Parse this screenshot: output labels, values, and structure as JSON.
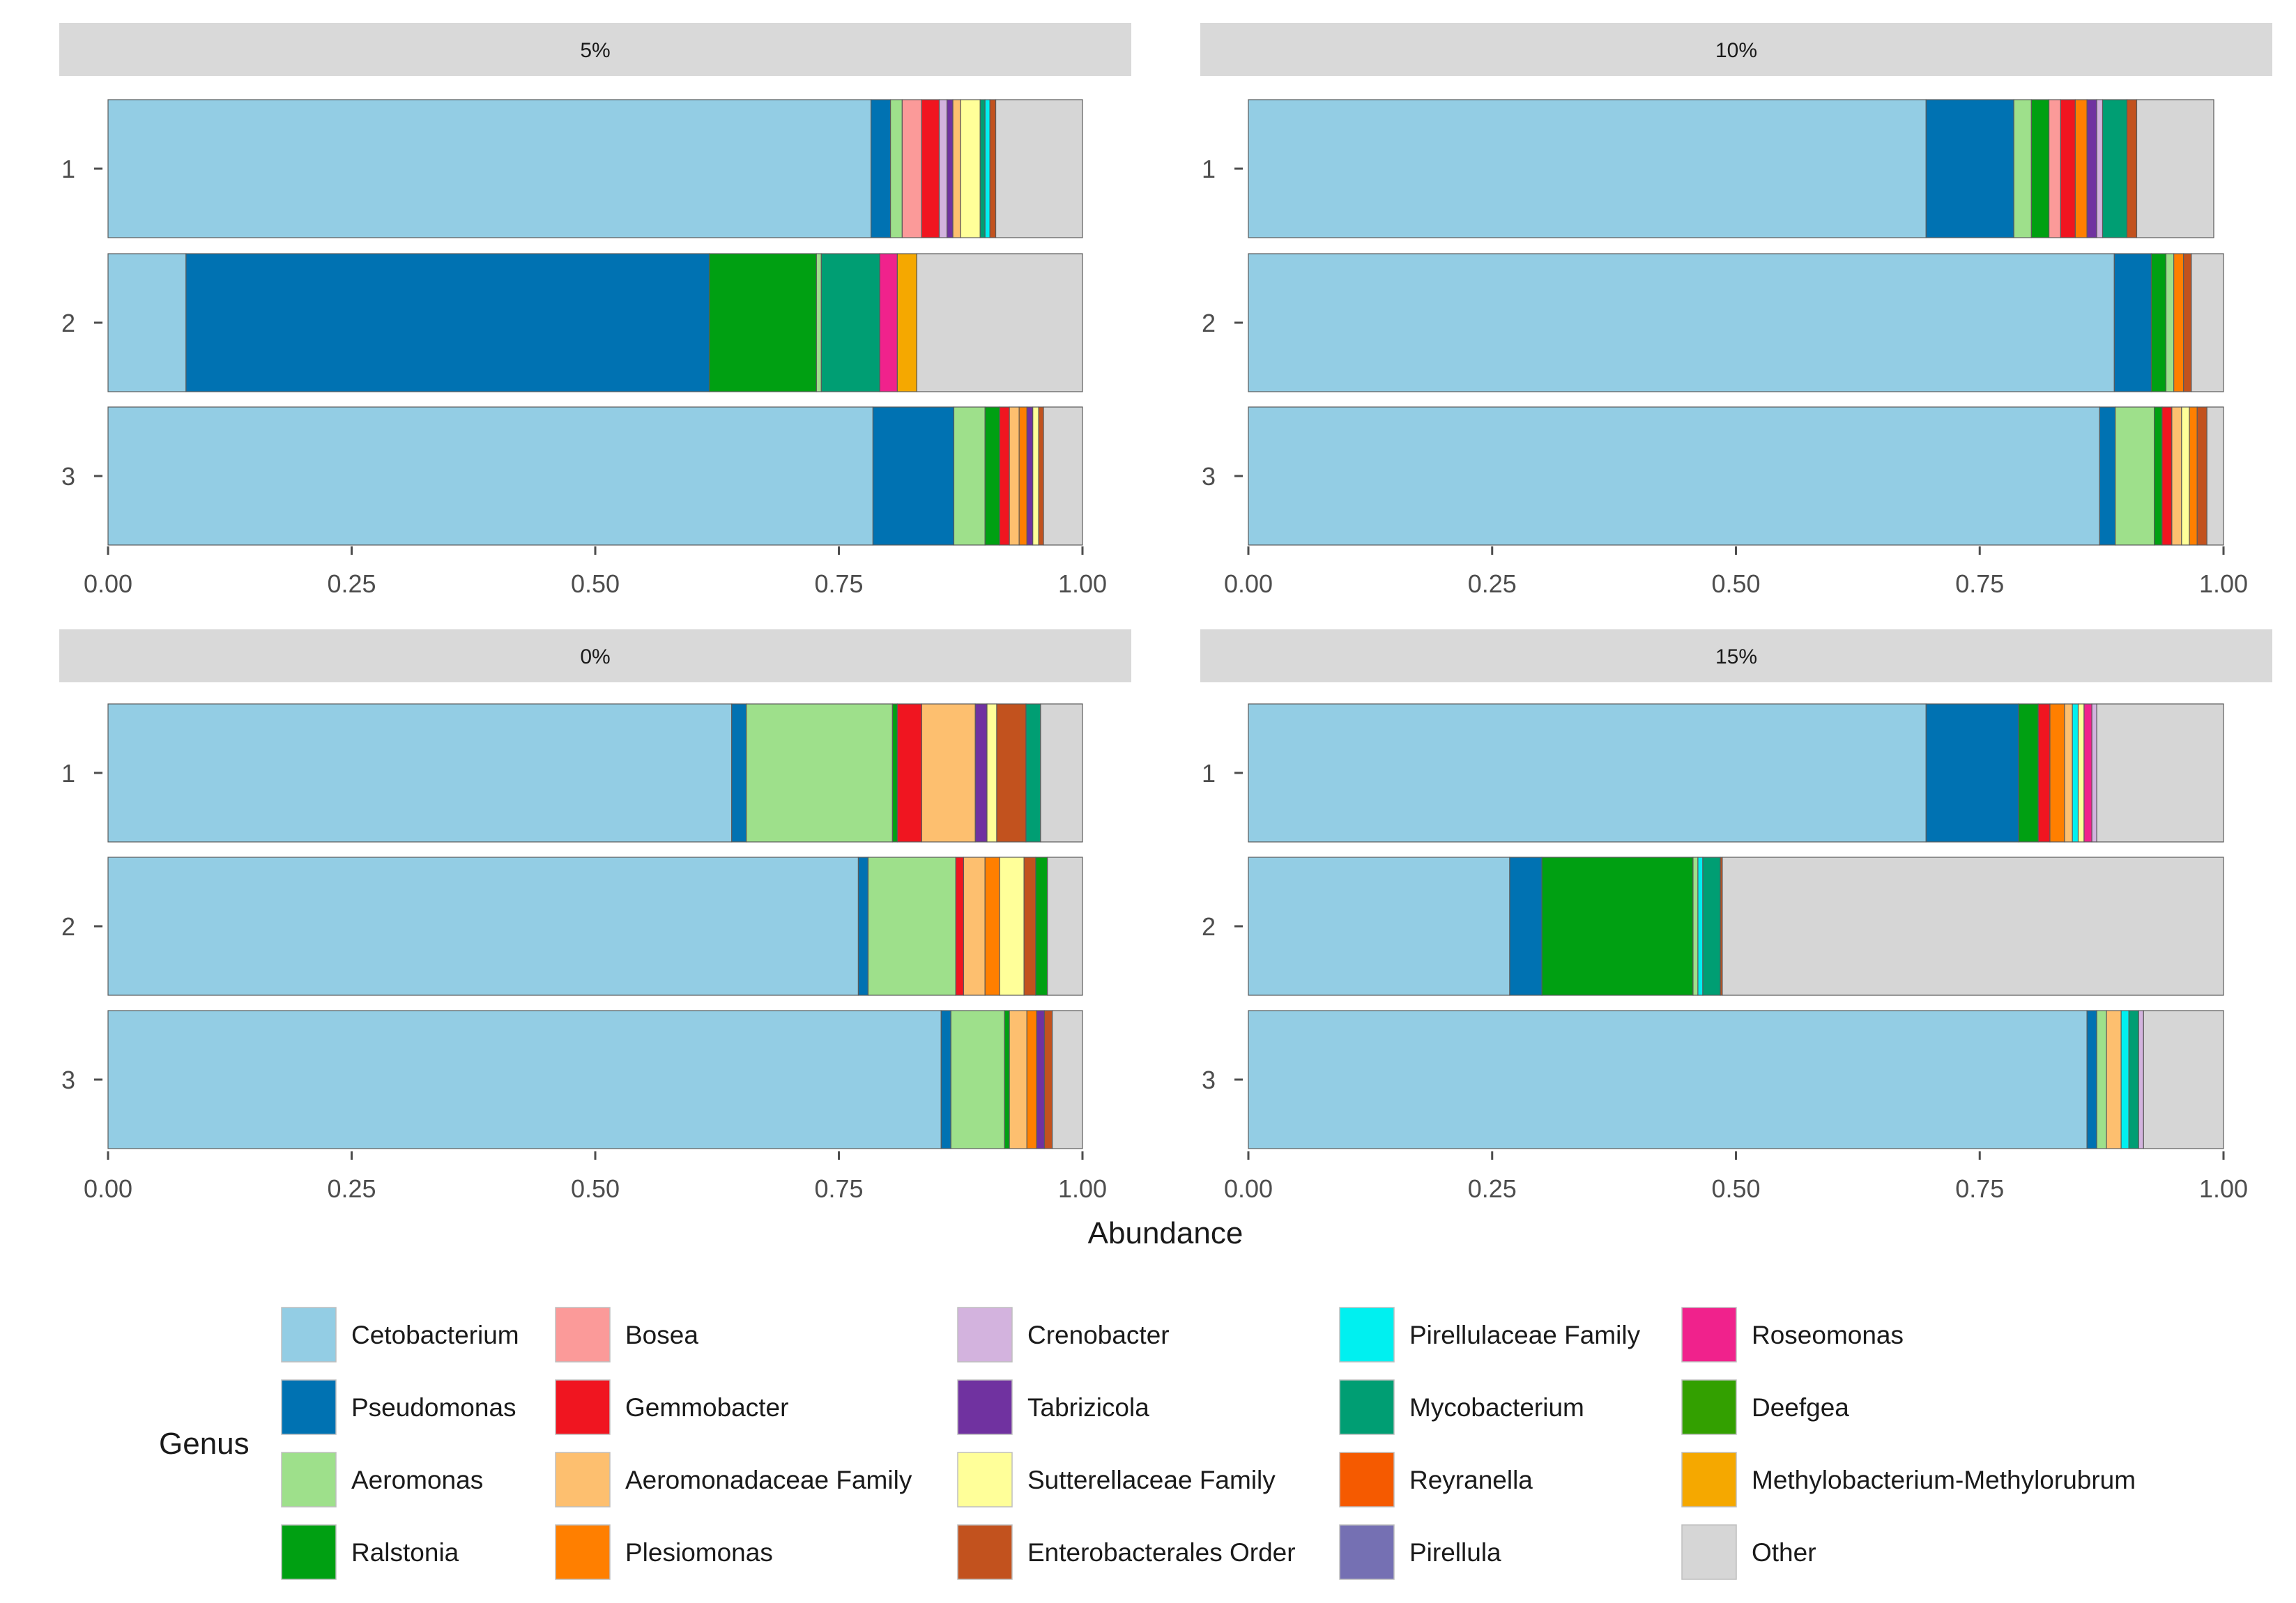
{
  "chart_data": {
    "type": "bar",
    "orientation": "horizontal",
    "stacked": true,
    "xlabel": "Abundance",
    "xlim": [
      0,
      1
    ],
    "x_ticks": [
      "0.00",
      "0.25",
      "0.50",
      "0.75",
      "1.00"
    ],
    "legend": {
      "title": "Genus",
      "position": "bottom",
      "entries": [
        {
          "name": "Cetobacterium",
          "color": "#93cde4"
        },
        {
          "name": "Pseudomonas",
          "color": "#0072b2"
        },
        {
          "name": "Aeromonas",
          "color": "#9ee08b"
        },
        {
          "name": "Ralstonia",
          "color": "#00a012"
        },
        {
          "name": "Bosea",
          "color": "#fb9a99"
        },
        {
          "name": "Gemmobacter",
          "color": "#f01520"
        },
        {
          "name": "Aeromonadaceae Family",
          "color": "#fdbf6f"
        },
        {
          "name": "Plesiomonas",
          "color": "#ff7f00"
        },
        {
          "name": "Crenobacter",
          "color": "#d3b3de"
        },
        {
          "name": "Tabrizicola",
          "color": "#7032a0"
        },
        {
          "name": "Sutterellaceae Family",
          "color": "#ffff99"
        },
        {
          "name": "Enterobacterales Order",
          "color": "#c2521e"
        },
        {
          "name": "Pirellulaceae Family",
          "color": "#00f0f0"
        },
        {
          "name": "Mycobacterium",
          "color": "#009e73"
        },
        {
          "name": "Reyranella",
          "color": "#f55a00"
        },
        {
          "name": "Pirellula",
          "color": "#7570b3"
        },
        {
          "name": "Roseomonas",
          "color": "#f0228c"
        },
        {
          "name": "Deefgea",
          "color": "#33a000"
        },
        {
          "name": "Methylobacterium-Methylorubrum",
          "color": "#f5a800"
        },
        {
          "name": "Other",
          "color": "#d6d6d6"
        }
      ]
    },
    "panels": [
      {
        "title": "5%",
        "rows": [
          {
            "label": "1",
            "segments": [
              [
                "Cetobacterium",
                0.783
              ],
              [
                "Pseudomonas",
                0.02
              ],
              [
                "Aeromonas",
                0.012
              ],
              [
                "Bosea",
                0.02
              ],
              [
                "Gemmobacter",
                0.018
              ],
              [
                "Crenobacter",
                0.008
              ],
              [
                "Tabrizicola",
                0.006
              ],
              [
                "Aeromonadaceae Family",
                0.008
              ],
              [
                "Sutterellaceae Family",
                0.02
              ],
              [
                "Mycobacterium",
                0.005
              ],
              [
                "Pirellulaceae Family",
                0.005
              ],
              [
                "Enterobacterales Order",
                0.006
              ],
              [
                "Other",
                0.089
              ]
            ]
          },
          {
            "label": "2",
            "segments": [
              [
                "Cetobacterium",
                0.08
              ],
              [
                "Pseudomonas",
                0.537
              ],
              [
                "Ralstonia",
                0.11
              ],
              [
                "Aeromonas",
                0.005
              ],
              [
                "Mycobacterium",
                0.06
              ],
              [
                "Roseomonas",
                0.018
              ],
              [
                "Methylobacterium-Methylorubrum",
                0.02
              ],
              [
                "Other",
                0.17
              ]
            ]
          },
          {
            "label": "3",
            "segments": [
              [
                "Cetobacterium",
                0.785
              ],
              [
                "Pseudomonas",
                0.083
              ],
              [
                "Aeromonas",
                0.032
              ],
              [
                "Ralstonia",
                0.015
              ],
              [
                "Gemmobacter",
                0.01
              ],
              [
                "Aeromonadaceae Family",
                0.01
              ],
              [
                "Plesiomonas",
                0.008
              ],
              [
                "Tabrizicola",
                0.006
              ],
              [
                "Sutterellaceae Family",
                0.006
              ],
              [
                "Enterobacterales Order",
                0.005
              ],
              [
                "Other",
                0.04
              ]
            ]
          }
        ]
      },
      {
        "title": "10%",
        "rows": [
          {
            "label": "1",
            "segments": [
              [
                "Cetobacterium",
                0.695
              ],
              [
                "Pseudomonas",
                0.09
              ],
              [
                "Aeromonas",
                0.018
              ],
              [
                "Ralstonia",
                0.018
              ],
              [
                "Bosea",
                0.012
              ],
              [
                "Gemmobacter",
                0.015
              ],
              [
                "Plesiomonas",
                0.012
              ],
              [
                "Tabrizicola",
                0.01
              ],
              [
                "Crenobacter",
                0.006
              ],
              [
                "Mycobacterium",
                0.025
              ],
              [
                "Enterobacterales Order",
                0.01
              ],
              [
                "Other",
                0.079
              ]
            ]
          },
          {
            "label": "2",
            "segments": [
              [
                "Cetobacterium",
                0.888
              ],
              [
                "Pseudomonas",
                0.038
              ],
              [
                "Ralstonia",
                0.015
              ],
              [
                "Aeromonas",
                0.008
              ],
              [
                "Plesiomonas",
                0.01
              ],
              [
                "Enterobacterales Order",
                0.008
              ],
              [
                "Other",
                0.033
              ]
            ]
          },
          {
            "label": "3",
            "segments": [
              [
                "Cetobacterium",
                0.873
              ],
              [
                "Pseudomonas",
                0.016
              ],
              [
                "Aeromonas",
                0.04
              ],
              [
                "Ralstonia",
                0.008
              ],
              [
                "Gemmobacter",
                0.01
              ],
              [
                "Aeromonadaceae Family",
                0.01
              ],
              [
                "Sutterellaceae Family",
                0.008
              ],
              [
                "Plesiomonas",
                0.008
              ],
              [
                "Enterobacterales Order",
                0.01
              ],
              [
                "Other",
                0.017
              ]
            ]
          }
        ]
      },
      {
        "title": "0%",
        "rows": [
          {
            "label": "1",
            "segments": [
              [
                "Cetobacterium",
                0.64
              ],
              [
                "Pseudomonas",
                0.015
              ],
              [
                "Aeromonas",
                0.15
              ],
              [
                "Ralstonia",
                0.005
              ],
              [
                "Gemmobacter",
                0.025
              ],
              [
                "Aeromonadaceae Family",
                0.055
              ],
              [
                "Tabrizicola",
                0.012
              ],
              [
                "Sutterellaceae Family",
                0.01
              ],
              [
                "Enterobacterales Order",
                0.03
              ],
              [
                "Mycobacterium",
                0.015
              ],
              [
                "Other",
                0.043
              ]
            ]
          },
          {
            "label": "2",
            "segments": [
              [
                "Cetobacterium",
                0.77
              ],
              [
                "Pseudomonas",
                0.01
              ],
              [
                "Aeromonas",
                0.09
              ],
              [
                "Gemmobacter",
                0.008
              ],
              [
                "Aeromonadaceae Family",
                0.022
              ],
              [
                "Plesiomonas",
                0.015
              ],
              [
                "Sutterellaceae Family",
                0.025
              ],
              [
                "Enterobacterales Order",
                0.012
              ],
              [
                "Ralstonia",
                0.012
              ],
              [
                "Other",
                0.036
              ]
            ]
          },
          {
            "label": "3",
            "segments": [
              [
                "Cetobacterium",
                0.855
              ],
              [
                "Pseudomonas",
                0.01
              ],
              [
                "Aeromonas",
                0.055
              ],
              [
                "Ralstonia",
                0.005
              ],
              [
                "Aeromonadaceae Family",
                0.018
              ],
              [
                "Plesiomonas",
                0.01
              ],
              [
                "Tabrizicola",
                0.008
              ],
              [
                "Enterobacterales Order",
                0.008
              ],
              [
                "Other",
                0.031
              ]
            ]
          }
        ]
      },
      {
        "title": "15%",
        "rows": [
          {
            "label": "1",
            "segments": [
              [
                "Cetobacterium",
                0.695
              ],
              [
                "Pseudomonas",
                0.095
              ],
              [
                "Ralstonia",
                0.02
              ],
              [
                "Gemmobacter",
                0.012
              ],
              [
                "Plesiomonas",
                0.015
              ],
              [
                "Aeromonadaceae Family",
                0.008
              ],
              [
                "Pirellulaceae Family",
                0.006
              ],
              [
                "Sutterellaceae Family",
                0.006
              ],
              [
                "Roseomonas",
                0.008
              ],
              [
                "Crenobacter",
                0.005
              ],
              [
                "Other",
                0.13
              ]
            ]
          },
          {
            "label": "2",
            "segments": [
              [
                "Cetobacterium",
                0.268
              ],
              [
                "Pseudomonas",
                0.033
              ],
              [
                "Ralstonia",
                0.155
              ],
              [
                "Aeromonas",
                0.005
              ],
              [
                "Pirellulaceae Family",
                0.005
              ],
              [
                "Mycobacterium",
                0.018
              ],
              [
                "Enterobacterales Order",
                0.002
              ],
              [
                "Other",
                0.514
              ]
            ]
          },
          {
            "label": "3",
            "segments": [
              [
                "Cetobacterium",
                0.86
              ],
              [
                "Pseudomonas",
                0.01
              ],
              [
                "Aeromonas",
                0.01
              ],
              [
                "Aeromonadaceae Family",
                0.015
              ],
              [
                "Pirellulaceae Family",
                0.008
              ],
              [
                "Mycobacterium",
                0.01
              ],
              [
                "Crenobacter",
                0.005
              ],
              [
                "Other",
                0.082
              ]
            ]
          }
        ]
      }
    ]
  }
}
